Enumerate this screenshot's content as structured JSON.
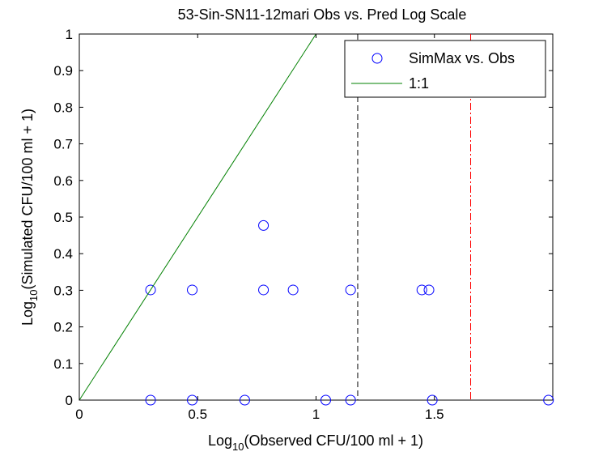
{
  "chart_data": {
    "type": "scatter",
    "title": "53-Sin-SN11-12mari Obs vs. Pred Log Scale",
    "xlabel": {
      "pre": "Log",
      "sub": "10",
      "post": "(Observed CFU/100 ml + 1)"
    },
    "ylabel": {
      "pre": "Log",
      "sub": "10",
      "post": "(Simulated CFU/100 ml + 1)"
    },
    "xlim": [
      0,
      2
    ],
    "ylim": [
      0,
      1
    ],
    "xticks": [
      0,
      0.5,
      1,
      1.5
    ],
    "xtick_labels": [
      "0",
      "0.5",
      "1",
      "1.5"
    ],
    "yticks": [
      0,
      0.1,
      0.2,
      0.3,
      0.4,
      0.5,
      0.6,
      0.7,
      0.8,
      0.9,
      1
    ],
    "ytick_labels": [
      "0",
      "0.1",
      "0.2",
      "0.3",
      "0.4",
      "0.5",
      "0.6",
      "0.7",
      "0.8",
      "0.9",
      "1"
    ],
    "legend_position": "top-right",
    "grid": false,
    "series": [
      {
        "name": "SimMax vs. Obs",
        "marker": "circle",
        "color": "#0000ff",
        "points": [
          [
            0.301,
            0.301
          ],
          [
            0.477,
            0.301
          ],
          [
            0.778,
            0.477
          ],
          [
            0.778,
            0.301
          ],
          [
            0.903,
            0.301
          ],
          [
            1.146,
            0.301
          ],
          [
            1.447,
            0.301
          ],
          [
            1.477,
            0.301
          ],
          [
            0.301,
            0
          ],
          [
            0.477,
            0
          ],
          [
            0.699,
            0
          ],
          [
            1.041,
            0
          ],
          [
            1.146,
            0
          ],
          [
            1.491,
            0
          ],
          [
            1.982,
            0
          ]
        ]
      },
      {
        "name": "1:1",
        "style": "line",
        "color": "#008000",
        "points": [
          [
            0,
            0
          ],
          [
            1,
            1
          ]
        ]
      }
    ],
    "reference_lines": [
      {
        "orientation": "vertical",
        "x": 1.176,
        "style": "dashed",
        "color": "#000000"
      },
      {
        "orientation": "vertical",
        "x": 1.653,
        "style": "dashdot",
        "color": "#ff0000"
      }
    ]
  }
}
